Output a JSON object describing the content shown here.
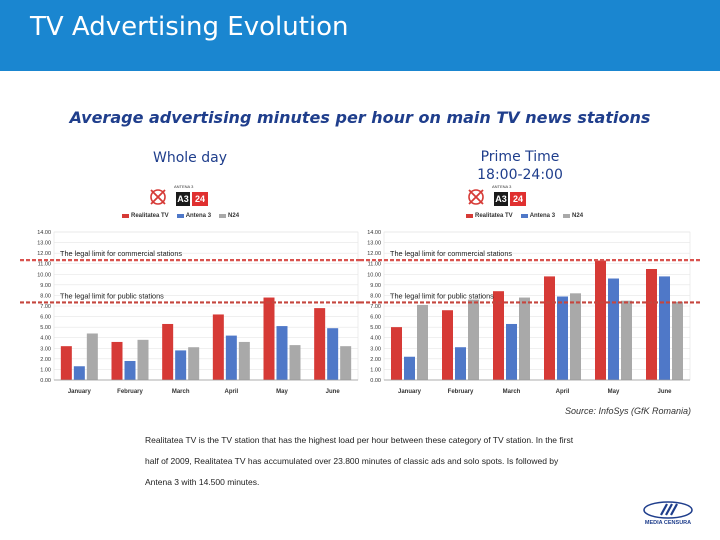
{
  "header": {
    "title": "TV Advertising Evolution"
  },
  "subtitle": "Average advertising minutes per hour on main TV news stations",
  "panels": {
    "whole_day": {
      "title": "Whole day"
    },
    "prime_time": {
      "title_line1": "Prime Time",
      "title_line2": "18:00-24:00"
    }
  },
  "logos": {
    "antena3": "A3",
    "antena3_caption": "ANTENA 3",
    "n24": "24"
  },
  "legend": [
    "Realitatea TV",
    "Antena 3",
    "N24"
  ],
  "colors": {
    "realitatea": "#D63A36",
    "antena3": "#4F78C8",
    "n24": "#A9A9A9",
    "limit_commercial": "#D9534F",
    "limit_public": "#C5463E",
    "header": "#1A86D0",
    "title": "#1F3E8C"
  },
  "chart_data": [
    {
      "type": "bar",
      "title": "Whole day",
      "categories": [
        "January",
        "February",
        "March",
        "April",
        "May",
        "June"
      ],
      "ytick_labels": [
        "0.00",
        "1.00",
        "2.00",
        "3.00",
        "4.00",
        "5.00",
        "6.00",
        "7.00",
        "8.00",
        "9.00",
        "10.00",
        "11.00",
        "12.00",
        "13.00",
        "14.00"
      ],
      "ylim": [
        0,
        14
      ],
      "series": [
        {
          "name": "Realitatea TV",
          "values": [
            3.2,
            3.6,
            5.3,
            6.2,
            7.8,
            6.8
          ]
        },
        {
          "name": "Antena 3",
          "values": [
            1.3,
            1.8,
            2.8,
            4.2,
            5.1,
            4.9
          ]
        },
        {
          "name": "N24",
          "values": [
            4.4,
            3.8,
            3.1,
            3.6,
            3.3,
            3.2
          ]
        }
      ],
      "reference_lines": [
        {
          "label": "The legal limit for commercial stations",
          "value": 12
        },
        {
          "label": "The legal limit for public stations",
          "value": 8
        }
      ]
    },
    {
      "type": "bar",
      "title": "Prime Time 18:00-24:00",
      "categories": [
        "January",
        "February",
        "March",
        "April",
        "May",
        "June"
      ],
      "ytick_labels": [
        "0.00",
        "1.00",
        "2.00",
        "3.00",
        "4.00",
        "5.00",
        "6.00",
        "7.00",
        "8.00",
        "9.00",
        "10.00",
        "11.00",
        "12.00",
        "13.00",
        "14.00"
      ],
      "ylim": [
        0,
        14
      ],
      "series": [
        {
          "name": "Realitatea TV",
          "values": [
            5.0,
            6.6,
            8.4,
            9.8,
            11.3,
            10.5
          ]
        },
        {
          "name": "Antena 3",
          "values": [
            2.2,
            3.1,
            5.3,
            7.9,
            9.6,
            9.8
          ]
        },
        {
          "name": "N24",
          "values": [
            7.1,
            7.6,
            7.8,
            8.2,
            7.5,
            7.4
          ]
        }
      ],
      "reference_lines": [
        {
          "label": "The legal limit for commercial stations",
          "value": 12
        },
        {
          "label": "The legal limit for public stations",
          "value": 8
        }
      ]
    }
  ],
  "source": "Source: InfoSys (GfK Romania)",
  "description": "Realitatea TV is the TV station that has the highest load per hour between these category of TV station. In the first half of 2009, Realitatea TV has accumulated over 23.800 minutes of classic ads and solo spots. Is followed by Antena 3 with 14.500 minutes.",
  "brand": {
    "name": "MEDIA CENSURA"
  }
}
